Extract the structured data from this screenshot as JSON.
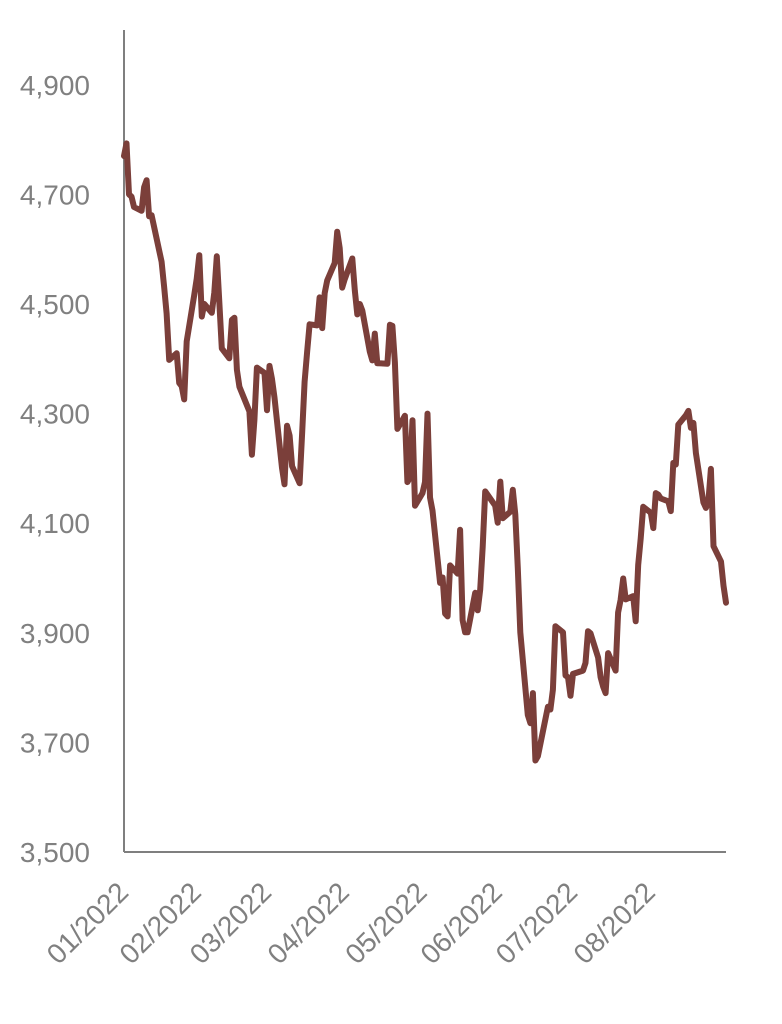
{
  "chart_data": {
    "type": "line",
    "title": "",
    "xlabel": "",
    "ylabel": "",
    "ylim": [
      3500,
      5000
    ],
    "yticks": [
      3500,
      3700,
      3900,
      4100,
      4300,
      4500,
      4700,
      4900
    ],
    "ytick_labels": [
      "3,500",
      "3,700",
      "3,900",
      "4,100",
      "4,300",
      "4,500",
      "4,700",
      "4,900"
    ],
    "xlim": [
      "2022-01-03",
      "2022-08-31"
    ],
    "xticks": [
      "2022-01-03",
      "2022-02-01",
      "2022-03-01",
      "2022-04-01",
      "2022-05-02",
      "2022-06-01",
      "2022-07-01",
      "2022-08-01"
    ],
    "xtick_labels": [
      "01/2022",
      "02/2022",
      "03/2022",
      "04/2022",
      "05/2022",
      "06/2022",
      "07/2022",
      "08/2022"
    ],
    "grid": false,
    "legend": "none",
    "series": [
      {
        "color": "#7b3f3a",
        "points": [
          [
            "2022-01-03",
            4770
          ],
          [
            "2022-01-04",
            4793
          ],
          [
            "2022-01-05",
            4700
          ],
          [
            "2022-01-06",
            4696
          ],
          [
            "2022-01-07",
            4677
          ],
          [
            "2022-01-10",
            4670
          ],
          [
            "2022-01-11",
            4713
          ],
          [
            "2022-01-12",
            4726
          ],
          [
            "2022-01-13",
            4660
          ],
          [
            "2022-01-14",
            4662
          ],
          [
            "2022-01-18",
            4577
          ],
          [
            "2022-01-19",
            4532
          ],
          [
            "2022-01-20",
            4483
          ],
          [
            "2022-01-21",
            4398
          ],
          [
            "2022-01-24",
            4410
          ],
          [
            "2022-01-25",
            4356
          ],
          [
            "2022-01-26",
            4350
          ],
          [
            "2022-01-27",
            4326
          ],
          [
            "2022-01-28",
            4432
          ],
          [
            "2022-01-31",
            4516
          ],
          [
            "2022-02-01",
            4546
          ],
          [
            "2022-02-02",
            4589
          ],
          [
            "2022-02-03",
            4477
          ],
          [
            "2022-02-04",
            4500
          ],
          [
            "2022-02-07",
            4484
          ],
          [
            "2022-02-08",
            4521
          ],
          [
            "2022-02-09",
            4587
          ],
          [
            "2022-02-10",
            4504
          ],
          [
            "2022-02-11",
            4419
          ],
          [
            "2022-02-14",
            4401
          ],
          [
            "2022-02-15",
            4471
          ],
          [
            "2022-02-16",
            4475
          ],
          [
            "2022-02-17",
            4380
          ],
          [
            "2022-02-18",
            4349
          ],
          [
            "2022-02-22",
            4304
          ],
          [
            "2022-02-23",
            4225
          ],
          [
            "2022-02-24",
            4288
          ],
          [
            "2022-02-25",
            4384
          ],
          [
            "2022-02-28",
            4374
          ],
          [
            "2022-03-01",
            4306
          ],
          [
            "2022-03-02",
            4387
          ],
          [
            "2022-03-03",
            4363
          ],
          [
            "2022-03-04",
            4329
          ],
          [
            "2022-03-07",
            4201
          ],
          [
            "2022-03-08",
            4171
          ],
          [
            "2022-03-09",
            4278
          ],
          [
            "2022-03-10",
            4260
          ],
          [
            "2022-03-11",
            4204
          ],
          [
            "2022-03-14",
            4173
          ],
          [
            "2022-03-15",
            4263
          ],
          [
            "2022-03-16",
            4358
          ],
          [
            "2022-03-17",
            4412
          ],
          [
            "2022-03-18",
            4463
          ],
          [
            "2022-03-21",
            4461
          ],
          [
            "2022-03-22",
            4512
          ],
          [
            "2022-03-23",
            4456
          ],
          [
            "2022-03-24",
            4520
          ],
          [
            "2022-03-25",
            4543
          ],
          [
            "2022-03-28",
            4575
          ],
          [
            "2022-03-29",
            4632
          ],
          [
            "2022-03-30",
            4602
          ],
          [
            "2022-03-31",
            4530
          ],
          [
            "2022-04-01",
            4545
          ],
          [
            "2022-04-04",
            4583
          ],
          [
            "2022-04-05",
            4525
          ],
          [
            "2022-04-06",
            4481
          ],
          [
            "2022-04-07",
            4500
          ],
          [
            "2022-04-08",
            4488
          ],
          [
            "2022-04-11",
            4413
          ],
          [
            "2022-04-12",
            4397
          ],
          [
            "2022-04-13",
            4446
          ],
          [
            "2022-04-14",
            4392
          ],
          [
            "2022-04-18",
            4391
          ],
          [
            "2022-04-19",
            4462
          ],
          [
            "2022-04-20",
            4460
          ],
          [
            "2022-04-21",
            4393
          ],
          [
            "2022-04-22",
            4272
          ],
          [
            "2022-04-25",
            4296
          ],
          [
            "2022-04-26",
            4175
          ],
          [
            "2022-04-27",
            4183
          ],
          [
            "2022-04-28",
            4288
          ],
          [
            "2022-04-29",
            4132
          ],
          [
            "2022-05-02",
            4155
          ],
          [
            "2022-05-03",
            4175
          ],
          [
            "2022-05-04",
            4300
          ],
          [
            "2022-05-05",
            4147
          ],
          [
            "2022-05-06",
            4123
          ],
          [
            "2022-05-09",
            3991
          ],
          [
            "2022-05-10",
            4001
          ],
          [
            "2022-05-11",
            3935
          ],
          [
            "2022-05-12",
            3930
          ],
          [
            "2022-05-13",
            4023
          ],
          [
            "2022-05-16",
            4008
          ],
          [
            "2022-05-17",
            4088
          ],
          [
            "2022-05-18",
            3923
          ],
          [
            "2022-05-19",
            3901
          ],
          [
            "2022-05-20",
            3901
          ],
          [
            "2022-05-23",
            3973
          ],
          [
            "2022-05-24",
            3941
          ],
          [
            "2022-05-25",
            3979
          ],
          [
            "2022-05-26",
            4057
          ],
          [
            "2022-05-27",
            4158
          ],
          [
            "2022-05-31",
            4132
          ],
          [
            "2022-06-01",
            4101
          ],
          [
            "2022-06-02",
            4176
          ],
          [
            "2022-06-03",
            4109
          ],
          [
            "2022-06-06",
            4121
          ],
          [
            "2022-06-07",
            4161
          ],
          [
            "2022-06-08",
            4116
          ],
          [
            "2022-06-09",
            4018
          ],
          [
            "2022-06-10",
            3901
          ],
          [
            "2022-06-13",
            3750
          ],
          [
            "2022-06-14",
            3735
          ],
          [
            "2022-06-15",
            3790
          ],
          [
            "2022-06-16",
            3667
          ],
          [
            "2022-06-17",
            3675
          ],
          [
            "2022-06-21",
            3765
          ],
          [
            "2022-06-22",
            3760
          ],
          [
            "2022-06-23",
            3796
          ],
          [
            "2022-06-24",
            3912
          ],
          [
            "2022-06-27",
            3901
          ],
          [
            "2022-06-28",
            3822
          ],
          [
            "2022-06-29",
            3819
          ],
          [
            "2022-06-30",
            3785
          ],
          [
            "2022-07-01",
            3825
          ],
          [
            "2022-07-05",
            3831
          ],
          [
            "2022-07-06",
            3845
          ],
          [
            "2022-07-07",
            3903
          ],
          [
            "2022-07-08",
            3899
          ],
          [
            "2022-07-11",
            3855
          ],
          [
            "2022-07-12",
            3819
          ],
          [
            "2022-07-13",
            3802
          ],
          [
            "2022-07-14",
            3790
          ],
          [
            "2022-07-15",
            3863
          ],
          [
            "2022-07-18",
            3831
          ],
          [
            "2022-07-19",
            3937
          ],
          [
            "2022-07-20",
            3960
          ],
          [
            "2022-07-21",
            3999
          ],
          [
            "2022-07-22",
            3961
          ],
          [
            "2022-07-25",
            3967
          ],
          [
            "2022-07-26",
            3921
          ],
          [
            "2022-07-27",
            4024
          ],
          [
            "2022-07-28",
            4072
          ],
          [
            "2022-07-29",
            4130
          ],
          [
            "2022-08-01",
            4119
          ],
          [
            "2022-08-02",
            4091
          ],
          [
            "2022-08-03",
            4155
          ],
          [
            "2022-08-04",
            4152
          ],
          [
            "2022-08-05",
            4145
          ],
          [
            "2022-08-08",
            4140
          ],
          [
            "2022-08-09",
            4122
          ],
          [
            "2022-08-10",
            4210
          ],
          [
            "2022-08-11",
            4207
          ],
          [
            "2022-08-12",
            4280
          ],
          [
            "2022-08-15",
            4297
          ],
          [
            "2022-08-16",
            4305
          ],
          [
            "2022-08-17",
            4274
          ],
          [
            "2022-08-18",
            4283
          ],
          [
            "2022-08-19",
            4228
          ],
          [
            "2022-08-22",
            4138
          ],
          [
            "2022-08-23",
            4128
          ],
          [
            "2022-08-24",
            4140
          ],
          [
            "2022-08-25",
            4199
          ],
          [
            "2022-08-26",
            4058
          ],
          [
            "2022-08-29",
            4030
          ],
          [
            "2022-08-30",
            3986
          ],
          [
            "2022-08-31",
            3955
          ]
        ]
      }
    ]
  }
}
